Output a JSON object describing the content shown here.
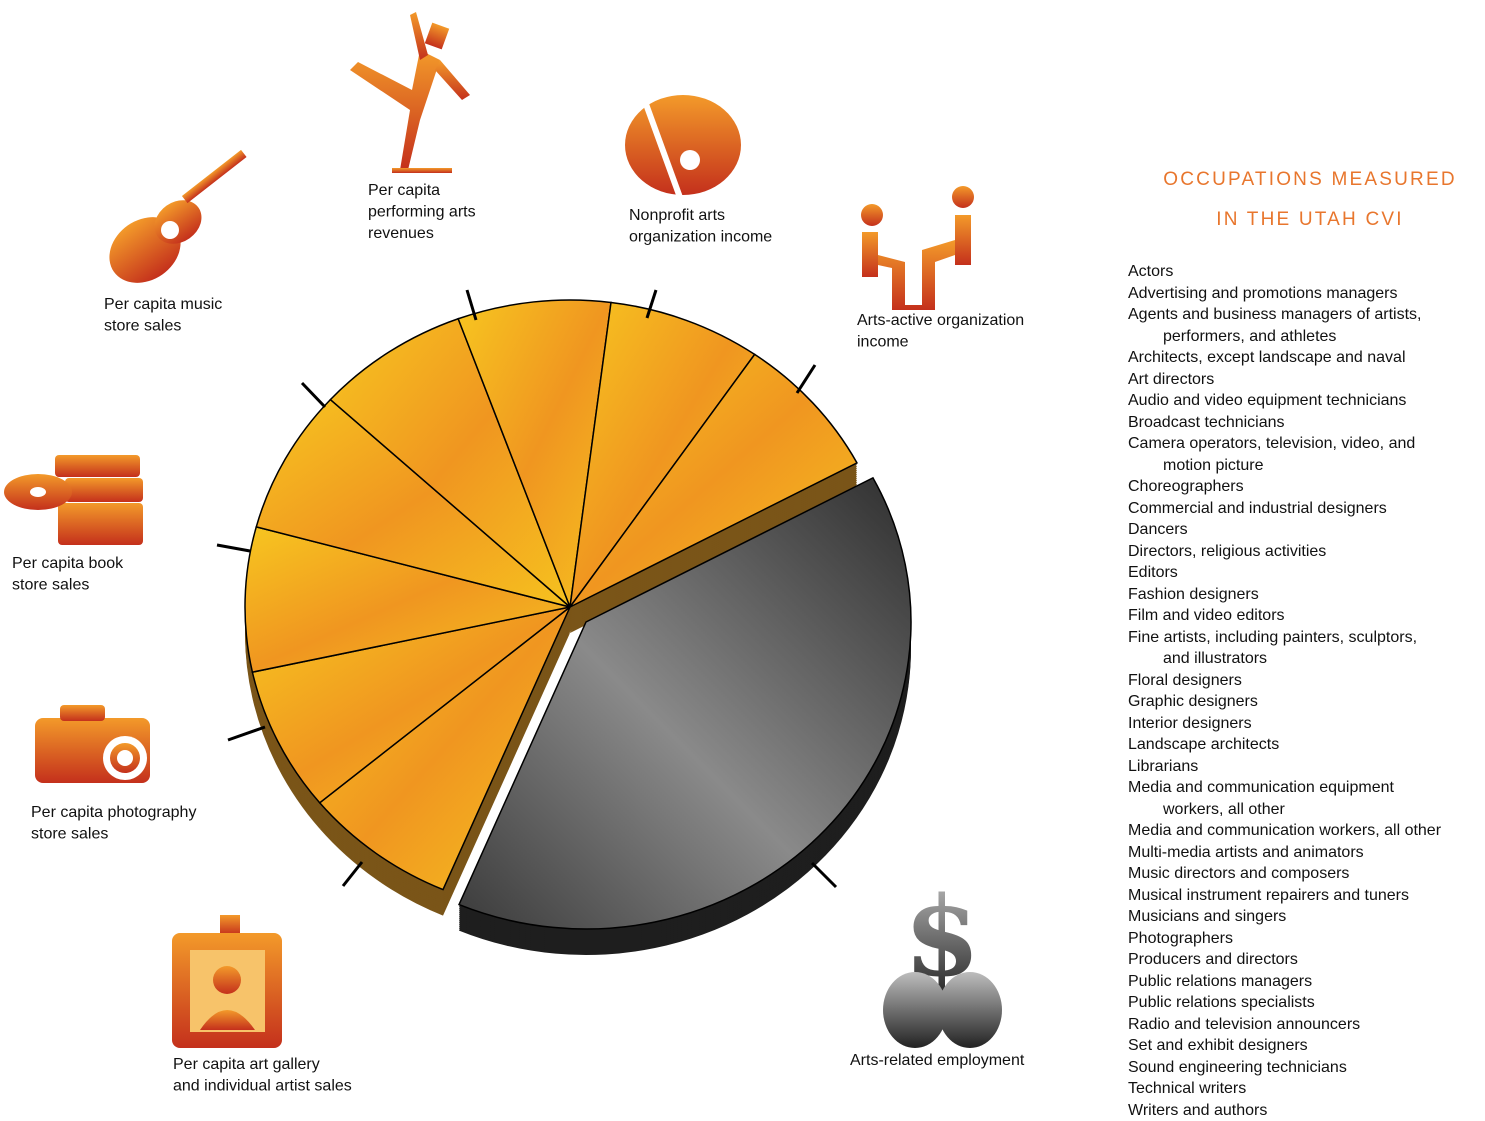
{
  "title": {
    "line1": "OCCUPATIONS MEASURED",
    "line2": "IN THE UTAH CVI"
  },
  "components": [
    {
      "label": [
        "Per capita music",
        "store sales"
      ]
    },
    {
      "label": [
        "Per capita",
        "performing arts",
        "revenues"
      ]
    },
    {
      "label": [
        "Nonprofit arts",
        "organization income"
      ]
    },
    {
      "label": [
        "Arts-active organization",
        "income"
      ]
    },
    {
      "label": [
        "Per capita book",
        "store sales"
      ]
    },
    {
      "label": [
        "Per capita photography",
        "store sales"
      ]
    },
    {
      "label": [
        "Per capita  art gallery",
        "and individual artist sales"
      ]
    },
    {
      "label": [
        "Arts-related employment"
      ]
    }
  ],
  "occupations": [
    [
      "Actors"
    ],
    [
      "Advertising and promotions managers"
    ],
    [
      "Agents and business managers of artists,",
      "performers, and athletes"
    ],
    [
      "Architects, except landscape and naval"
    ],
    [
      "Art directors"
    ],
    [
      "Audio and video equipment technicians"
    ],
    [
      "Broadcast technicians"
    ],
    [
      "Camera operators, television, video, and",
      "motion picture"
    ],
    [
      "Choreographers"
    ],
    [
      "Commercial and industrial designers"
    ],
    [
      "Dancers"
    ],
    [
      "Directors, religious activities"
    ],
    [
      "Editors"
    ],
    [
      "Fashion designers"
    ],
    [
      "Film and video editors"
    ],
    [
      "Fine artists, including painters, sculptors,",
      "and illustrators"
    ],
    [
      "Floral designers"
    ],
    [
      "Graphic designers"
    ],
    [
      "Interior designers"
    ],
    [
      "Landscape architects"
    ],
    [
      "Librarians"
    ],
    [
      "Media and communication equipment",
      "workers, all other"
    ],
    [
      "Media and communication workers, all other"
    ],
    [
      "Multi-media artists and animators"
    ],
    [
      "Music directors and composers"
    ],
    [
      "Musical instrument repairers and tuners"
    ],
    [
      "Musicians and singers"
    ],
    [
      "Photographers"
    ],
    [
      "Producers and directors"
    ],
    [
      "Public relations managers"
    ],
    [
      "Public relations specialists"
    ],
    [
      "Radio and television announcers"
    ],
    [
      "Set and exhibit designers"
    ],
    [
      "Sound engineering technicians"
    ],
    [
      "Technical writers"
    ],
    [
      "Writers and authors"
    ]
  ]
}
